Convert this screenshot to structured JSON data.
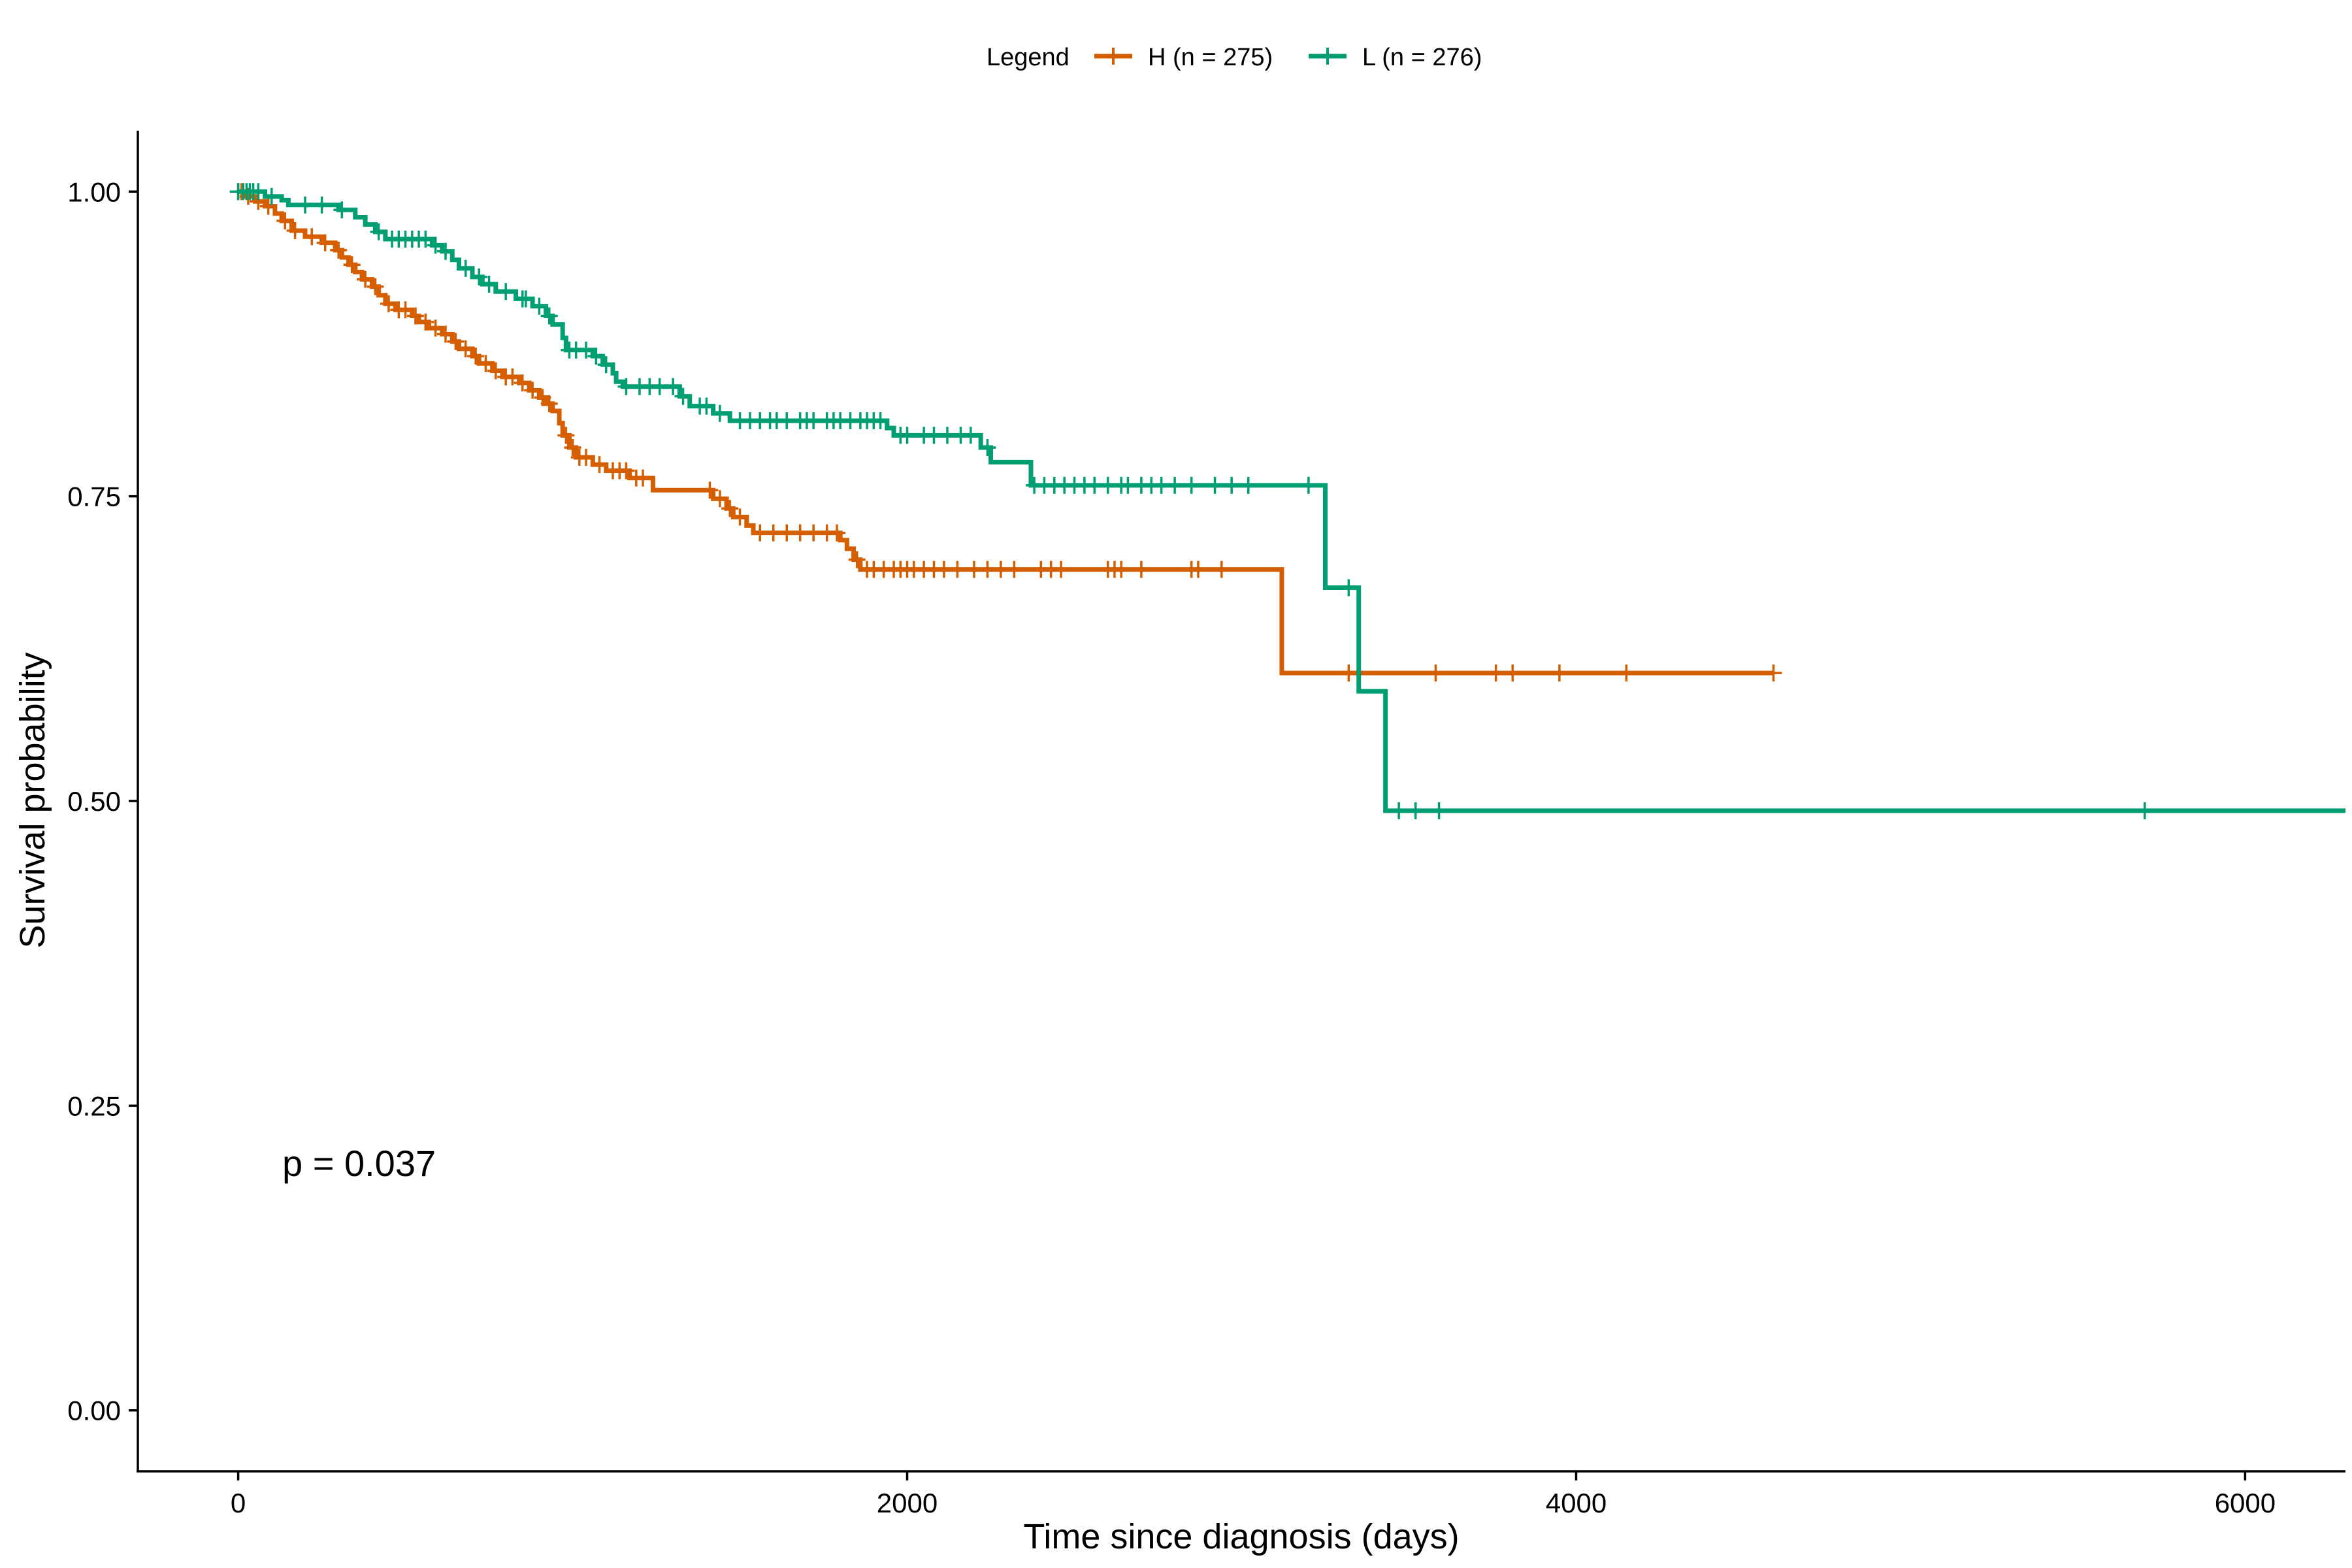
{
  "chart_data": {
    "type": "line",
    "subtype": "kaplan-meier-step",
    "title": "",
    "xlabel": "Time since diagnosis (days)",
    "ylabel": "Survival probability",
    "xlim": [
      -300,
      6300
    ],
    "ylim": [
      -0.05,
      1.05
    ],
    "xticks": [
      0,
      2000,
      4000,
      6000
    ],
    "xtick_labels": [
      "0",
      "2000",
      "4000",
      "6000"
    ],
    "yticks": [
      0,
      0.25,
      0.5,
      0.75,
      1.0
    ],
    "ytick_labels": [
      "0.00",
      "0.25",
      "0.50",
      "0.75",
      "1.00"
    ],
    "grid": false,
    "legend": {
      "title": "Legend",
      "position": "top-center"
    },
    "annotation": "p = 0.037",
    "series": [
      {
        "name": "H (n = 275)",
        "color": "#D55E00",
        "steps": [
          [
            0,
            1.0
          ],
          [
            20,
            0.996
          ],
          [
            50,
            0.992
          ],
          [
            80,
            0.988
          ],
          [
            110,
            0.982
          ],
          [
            130,
            0.976
          ],
          [
            160,
            0.968
          ],
          [
            200,
            0.963
          ],
          [
            250,
            0.958
          ],
          [
            290,
            0.952
          ],
          [
            310,
            0.946
          ],
          [
            330,
            0.94
          ],
          [
            350,
            0.934
          ],
          [
            370,
            0.928
          ],
          [
            400,
            0.922
          ],
          [
            420,
            0.915
          ],
          [
            440,
            0.908
          ],
          [
            470,
            0.903
          ],
          [
            520,
            0.898
          ],
          [
            540,
            0.893
          ],
          [
            570,
            0.888
          ],
          [
            610,
            0.883
          ],
          [
            640,
            0.877
          ],
          [
            660,
            0.871
          ],
          [
            700,
            0.865
          ],
          [
            720,
            0.859
          ],
          [
            760,
            0.853
          ],
          [
            790,
            0.848
          ],
          [
            840,
            0.843
          ],
          [
            870,
            0.837
          ],
          [
            900,
            0.831
          ],
          [
            920,
            0.826
          ],
          [
            940,
            0.82
          ],
          [
            960,
            0.81
          ],
          [
            970,
            0.8
          ],
          [
            990,
            0.79
          ],
          [
            1010,
            0.782
          ],
          [
            1060,
            0.776
          ],
          [
            1100,
            0.771
          ],
          [
            1170,
            0.765
          ],
          [
            1240,
            0.755
          ],
          [
            1420,
            0.748
          ],
          [
            1460,
            0.74
          ],
          [
            1480,
            0.733
          ],
          [
            1520,
            0.726
          ],
          [
            1540,
            0.72
          ],
          [
            1800,
            0.714
          ],
          [
            1820,
            0.707
          ],
          [
            1840,
            0.698
          ],
          [
            1860,
            0.69
          ],
          [
            3120,
            0.605
          ],
          [
            4590,
            0.605
          ]
        ],
        "censors": [
          0,
          10,
          30,
          60,
          90,
          140,
          170,
          220,
          260,
          300,
          340,
          380,
          410,
          450,
          480,
          500,
          530,
          560,
          590,
          620,
          650,
          680,
          710,
          740,
          770,
          800,
          820,
          850,
          880,
          910,
          930,
          980,
          1000,
          1020,
          1040,
          1080,
          1120,
          1140,
          1160,
          1190,
          1210,
          1410,
          1440,
          1470,
          1500,
          1560,
          1600,
          1640,
          1680,
          1720,
          1760,
          1790,
          1850,
          1880,
          1900,
          1930,
          1960,
          1980,
          2000,
          2020,
          2050,
          2080,
          2110,
          2150,
          2200,
          2240,
          2280,
          2320,
          2400,
          2430,
          2460,
          2600,
          2620,
          2640,
          2700,
          2850,
          2870,
          2940,
          3320,
          3580,
          3760,
          3810,
          3950,
          4150,
          4590
        ]
      },
      {
        "name": "L (n = 276)",
        "color": "#009E73",
        "steps": [
          [
            0,
            1.0
          ],
          [
            80,
            0.996
          ],
          [
            130,
            0.993
          ],
          [
            150,
            0.989
          ],
          [
            300,
            0.985
          ],
          [
            350,
            0.979
          ],
          [
            380,
            0.973
          ],
          [
            410,
            0.967
          ],
          [
            440,
            0.961
          ],
          [
            580,
            0.956
          ],
          [
            610,
            0.951
          ],
          [
            640,
            0.944
          ],
          [
            660,
            0.937
          ],
          [
            700,
            0.93
          ],
          [
            730,
            0.924
          ],
          [
            770,
            0.918
          ],
          [
            830,
            0.912
          ],
          [
            880,
            0.906
          ],
          [
            920,
            0.898
          ],
          [
            940,
            0.891
          ],
          [
            970,
            0.88
          ],
          [
            980,
            0.87
          ],
          [
            1060,
            0.865
          ],
          [
            1090,
            0.858
          ],
          [
            1120,
            0.851
          ],
          [
            1130,
            0.844
          ],
          [
            1150,
            0.84
          ],
          [
            1320,
            0.832
          ],
          [
            1350,
            0.824
          ],
          [
            1420,
            0.818
          ],
          [
            1470,
            0.812
          ],
          [
            1940,
            0.806
          ],
          [
            1960,
            0.8
          ],
          [
            2220,
            0.79
          ],
          [
            2250,
            0.778
          ],
          [
            2370,
            0.759
          ],
          [
            3250,
            0.675
          ],
          [
            3350,
            0.59
          ],
          [
            3430,
            0.492
          ],
          [
            6300,
            0.492
          ]
        ],
        "censors": [
          0,
          15,
          25,
          35,
          45,
          60,
          100,
          200,
          250,
          310,
          420,
          460,
          480,
          500,
          520,
          540,
          560,
          590,
          620,
          680,
          720,
          750,
          800,
          850,
          860,
          900,
          930,
          990,
          1010,
          1040,
          1070,
          1100,
          1160,
          1200,
          1230,
          1260,
          1300,
          1330,
          1380,
          1400,
          1440,
          1500,
          1530,
          1560,
          1590,
          1610,
          1640,
          1680,
          1700,
          1720,
          1760,
          1780,
          1800,
          1830,
          1860,
          1880,
          1900,
          1920,
          1980,
          2000,
          2050,
          2080,
          2120,
          2160,
          2190,
          2240,
          2380,
          2410,
          2440,
          2470,
          2500,
          2530,
          2560,
          2600,
          2640,
          2660,
          2700,
          2730,
          2760,
          2800,
          2850,
          2920,
          2970,
          3020,
          3200,
          3320,
          3470,
          3520,
          3590,
          5700
        ]
      }
    ]
  }
}
